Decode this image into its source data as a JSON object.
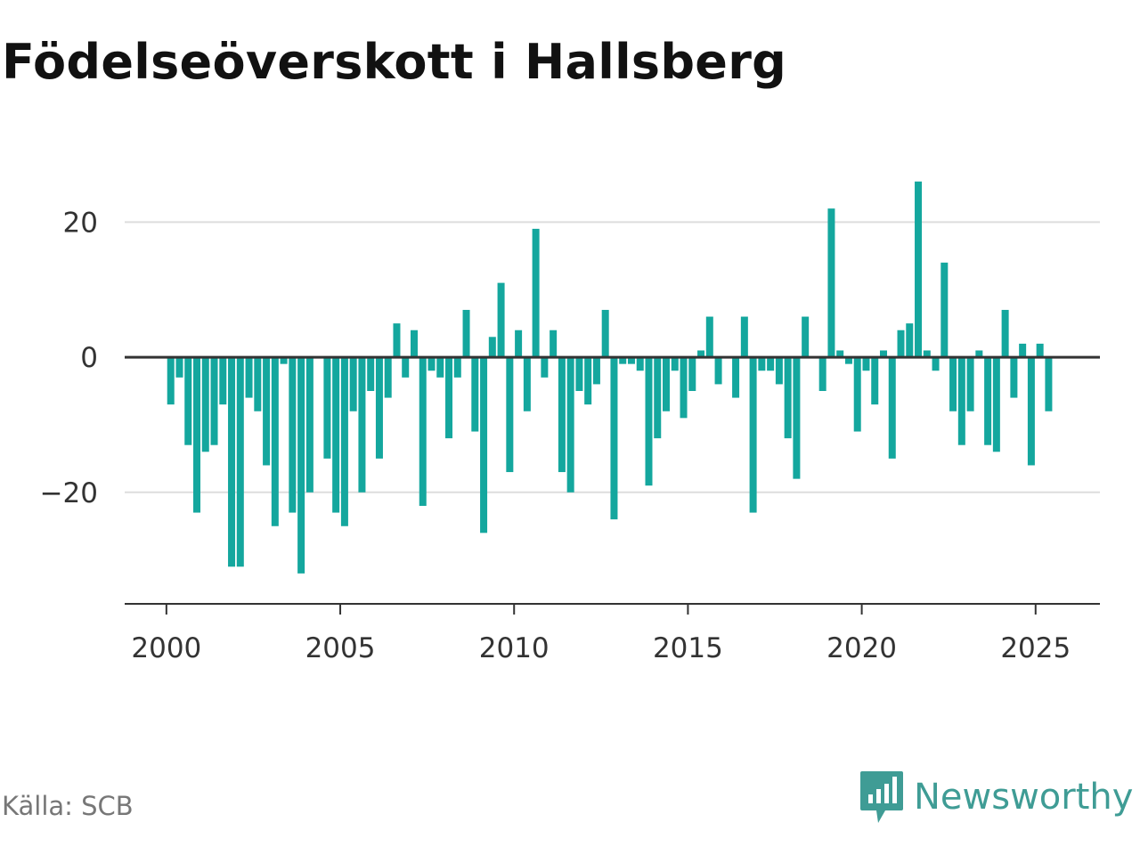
{
  "title": "Födelseöverskott i Hallsberg",
  "source": "Källa: SCB",
  "brand": {
    "name": "Newsworthy",
    "icon": "newsworthy-logo-icon",
    "color": "#3f9c95"
  },
  "colors": {
    "bar": "#14a79e",
    "zero_line": "#333333",
    "grid": "#dddddd",
    "axis": "#333333"
  },
  "chart_data": {
    "type": "bar",
    "title": "Födelseöverskott i Hallsberg",
    "xlabel": "",
    "ylabel": "",
    "ylim": [
      -36.5,
      26.5
    ],
    "xlim": [
      1998.8,
      2026.85
    ],
    "yticks": [
      -20,
      0,
      20
    ],
    "ytick_labels": [
      "−20",
      "0",
      "20"
    ],
    "xticks": [
      2000,
      2005,
      2010,
      2015,
      2020,
      2025
    ],
    "xtick_labels": [
      "2000",
      "2005",
      "2010",
      "2015",
      "2020",
      "2025"
    ],
    "grid": true,
    "legend": "none",
    "start": 2000.0,
    "step": 0.25,
    "values": [
      -7,
      -3,
      -13,
      -23,
      -14,
      -13,
      -7,
      -31,
      -31,
      -6,
      -8,
      -16,
      -25,
      -1,
      -23,
      -32,
      -20,
      0,
      -15,
      -23,
      -25,
      -8,
      -20,
      -5,
      -15,
      -6,
      5,
      -3,
      4,
      -22,
      -2,
      -3,
      -12,
      -3,
      7,
      -11,
      -26,
      3,
      11,
      -17,
      4,
      -8,
      19,
      -3,
      4,
      -17,
      -20,
      -5,
      -7,
      -4,
      7,
      -24,
      -1,
      -1,
      -2,
      -19,
      -12,
      -8,
      -2,
      -9,
      -5,
      1,
      6,
      -4,
      0,
      -6,
      6,
      -23,
      -2,
      -2,
      -4,
      -12,
      -18,
      6,
      0,
      -5,
      22,
      1,
      -1,
      -11,
      -2,
      -7,
      1,
      -15,
      4,
      5,
      26,
      1,
      -2,
      14,
      -8,
      -13,
      -8,
      1,
      -13,
      -14,
      7,
      -6,
      2,
      -16,
      2,
      -8
    ]
  }
}
